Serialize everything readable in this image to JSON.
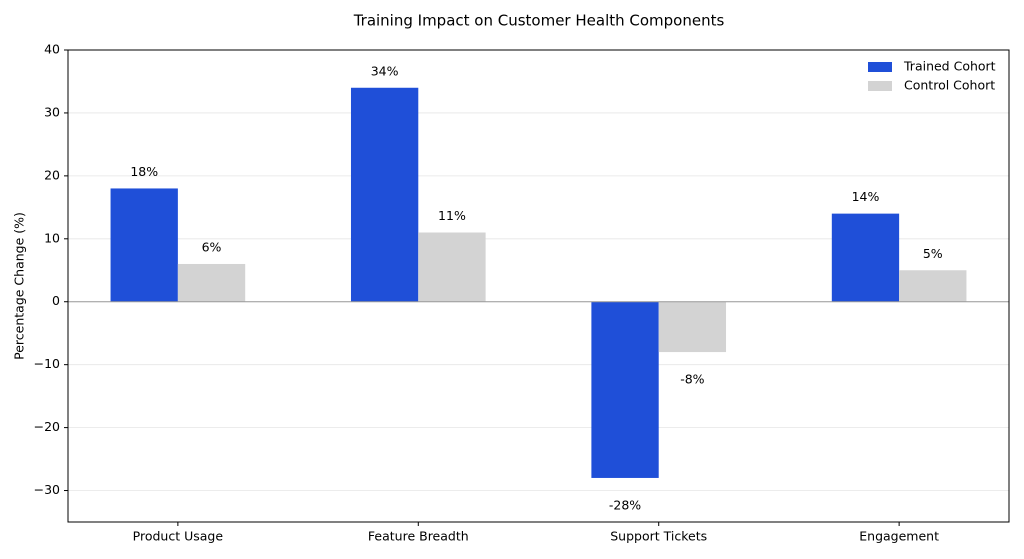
{
  "chart_data": {
    "type": "bar",
    "title": "Training Impact on Customer Health Components",
    "y_label": "Percentage Change (%)",
    "categories": [
      "Product Usage",
      "Feature Breadth",
      "Support Tickets",
      "Engagement"
    ],
    "series": [
      {
        "name": "Trained Cohort",
        "color": "#1f4fd8",
        "values": [
          18,
          34,
          -28,
          14
        ],
        "value_labels": [
          "18%",
          "34%",
          "-28%",
          "14%"
        ]
      },
      {
        "name": "Control Cohort",
        "color": "#d3d3d3",
        "values": [
          6,
          11,
          -8,
          5
        ],
        "value_labels": [
          "6%",
          "11%",
          "-8%",
          "5%"
        ]
      }
    ],
    "ylim": [
      -35,
      40
    ],
    "yticks": [
      {
        "value": -30,
        "label": "−30"
      },
      {
        "value": -20,
        "label": "−20"
      },
      {
        "value": -10,
        "label": "−10"
      },
      0,
      10,
      20,
      30,
      40
    ],
    "grid": true,
    "legend": "upper right"
  }
}
